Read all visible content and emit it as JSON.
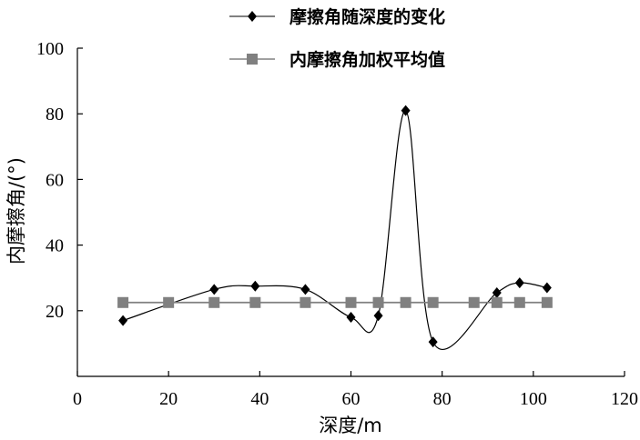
{
  "chart_data": {
    "type": "line",
    "xlabel": "深度/m",
    "ylabel": "内摩擦角/(°)",
    "xlim": [
      0,
      120
    ],
    "ylim": [
      0,
      100
    ],
    "xticks": [
      0,
      20,
      40,
      60,
      80,
      100,
      120
    ],
    "yticks": [
      20,
      40,
      60,
      80,
      100
    ],
    "grid": false,
    "legend_position": "top-center",
    "series": [
      {
        "name": "摩擦角随深度的变化",
        "marker": "diamond",
        "color": "#000000",
        "smooth": true,
        "x": [
          10,
          30,
          39,
          50,
          60,
          66,
          72,
          78,
          92,
          97,
          103
        ],
        "y": [
          17,
          26.5,
          27.5,
          26.5,
          18,
          18.5,
          81,
          10.5,
          25.5,
          28.5,
          27
        ]
      },
      {
        "name": "内摩擦角加权平均值",
        "marker": "square",
        "color": "#808080",
        "smooth": false,
        "x": [
          10,
          20,
          30,
          39,
          50,
          60,
          66,
          72,
          78,
          87,
          92,
          97,
          103
        ],
        "y": [
          22.5,
          22.5,
          22.5,
          22.5,
          22.5,
          22.5,
          22.5,
          22.5,
          22.5,
          22.5,
          22.5,
          22.5,
          22.5
        ]
      }
    ]
  }
}
